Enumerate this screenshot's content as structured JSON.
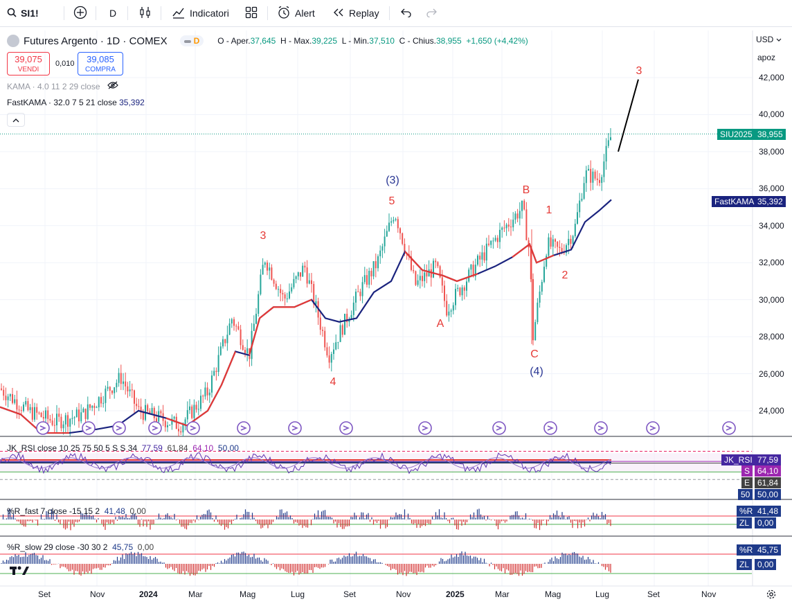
{
  "toolbar": {
    "symbol": "SI1!",
    "interval": "D",
    "indicators_label": "Indicatori",
    "alert_label": "Alert",
    "replay_label": "Replay"
  },
  "legend": {
    "title": "Futures Argento · 1D · COMEX",
    "ohlc": {
      "o_label": "O - Aper.",
      "o": "37,645",
      "h_label": "H - Max.",
      "h": "39,225",
      "l_label": "L - Min.",
      "l": "37,510",
      "c_label": "C - Chius.",
      "c": "38,955",
      "change": "+1,650 (+4,42%)"
    },
    "sell_price": "39,075",
    "sell_label": "VENDI",
    "spread": "0,010",
    "buy_price": "39,085",
    "buy_label": "COMPRA",
    "kama": "KAMA · 4.0 11 2 29 close",
    "fastkama": "FastKAMA · 32.0 7 5 21 close",
    "fastkama_value": "35,392"
  },
  "right_axis": {
    "currency": "USD",
    "mode": "apoz",
    "ticks": [
      "42,000",
      "40,000",
      "38,000",
      "36,000",
      "34,000",
      "32,000",
      "30,000",
      "28,000",
      "26,000",
      "24,000"
    ],
    "price_tag_name": "SIU2025",
    "price_tag_value": "38,955",
    "fastkama_tag_name": "FastKAMA",
    "fastkama_tag_value": "35,392"
  },
  "wave_labels": [
    {
      "text": "3",
      "color": "#e53935"
    },
    {
      "text": "4",
      "color": "#e53935"
    },
    {
      "text": "5",
      "color": "#e53935"
    },
    {
      "text": "(3)",
      "color": "#283593"
    },
    {
      "text": "A",
      "color": "#e53935"
    },
    {
      "text": "B",
      "color": "#e53935"
    },
    {
      "text": "C",
      "color": "#e53935"
    },
    {
      "text": "(4)",
      "color": "#283593"
    },
    {
      "text": "1",
      "color": "#e53935"
    },
    {
      "text": "2",
      "color": "#e53935"
    },
    {
      "text": "3",
      "color": "#e53935"
    }
  ],
  "rsi_panel": {
    "title": "JK_RSI close 10 25 75 50 5 S S 34",
    "v1": "77,59",
    "v2": "61,84",
    "v3": "64,10",
    "v4": "50,00",
    "tags": [
      {
        "name": "JK_RSI",
        "value": "77,59",
        "color": "#4527a0"
      },
      {
        "name": "S",
        "value": "64,10",
        "color": "#9c27b0"
      },
      {
        "name": "E",
        "value": "61,84",
        "color": "#424242"
      },
      {
        "name": "50",
        "value": "50,00",
        "color": "#1e3a8a"
      }
    ]
  },
  "rfast_panel": {
    "title": "%R_fast 7 close -15 15 2",
    "v1": "41,48",
    "v2": "0,00",
    "tags": [
      {
        "name": "%R",
        "value": "41,48",
        "color": "#1e3a8a"
      },
      {
        "name": "ZL",
        "value": "0,00",
        "color": "#1e3a8a"
      }
    ]
  },
  "rslow_panel": {
    "title": "%R_slow 29 close -30 30 2",
    "v1": "45,75",
    "v2": "0,00",
    "tags": [
      {
        "name": "%R",
        "value": "45,75",
        "color": "#1e3a8a"
      },
      {
        "name": "ZL",
        "value": "0,00",
        "color": "#1e3a8a"
      }
    ]
  },
  "time_axis": [
    "Set",
    "Nov",
    "2024",
    "Mar",
    "Mag",
    "Lug",
    "Set",
    "Nov",
    "2025",
    "Mar",
    "Mag",
    "Lug",
    "Set",
    "Nov"
  ],
  "colors": {
    "up": "#26a69a",
    "down": "#ef5350",
    "kama_red": "#e53935",
    "kama_blue": "#1a237e",
    "accent": "#2962ff"
  }
}
